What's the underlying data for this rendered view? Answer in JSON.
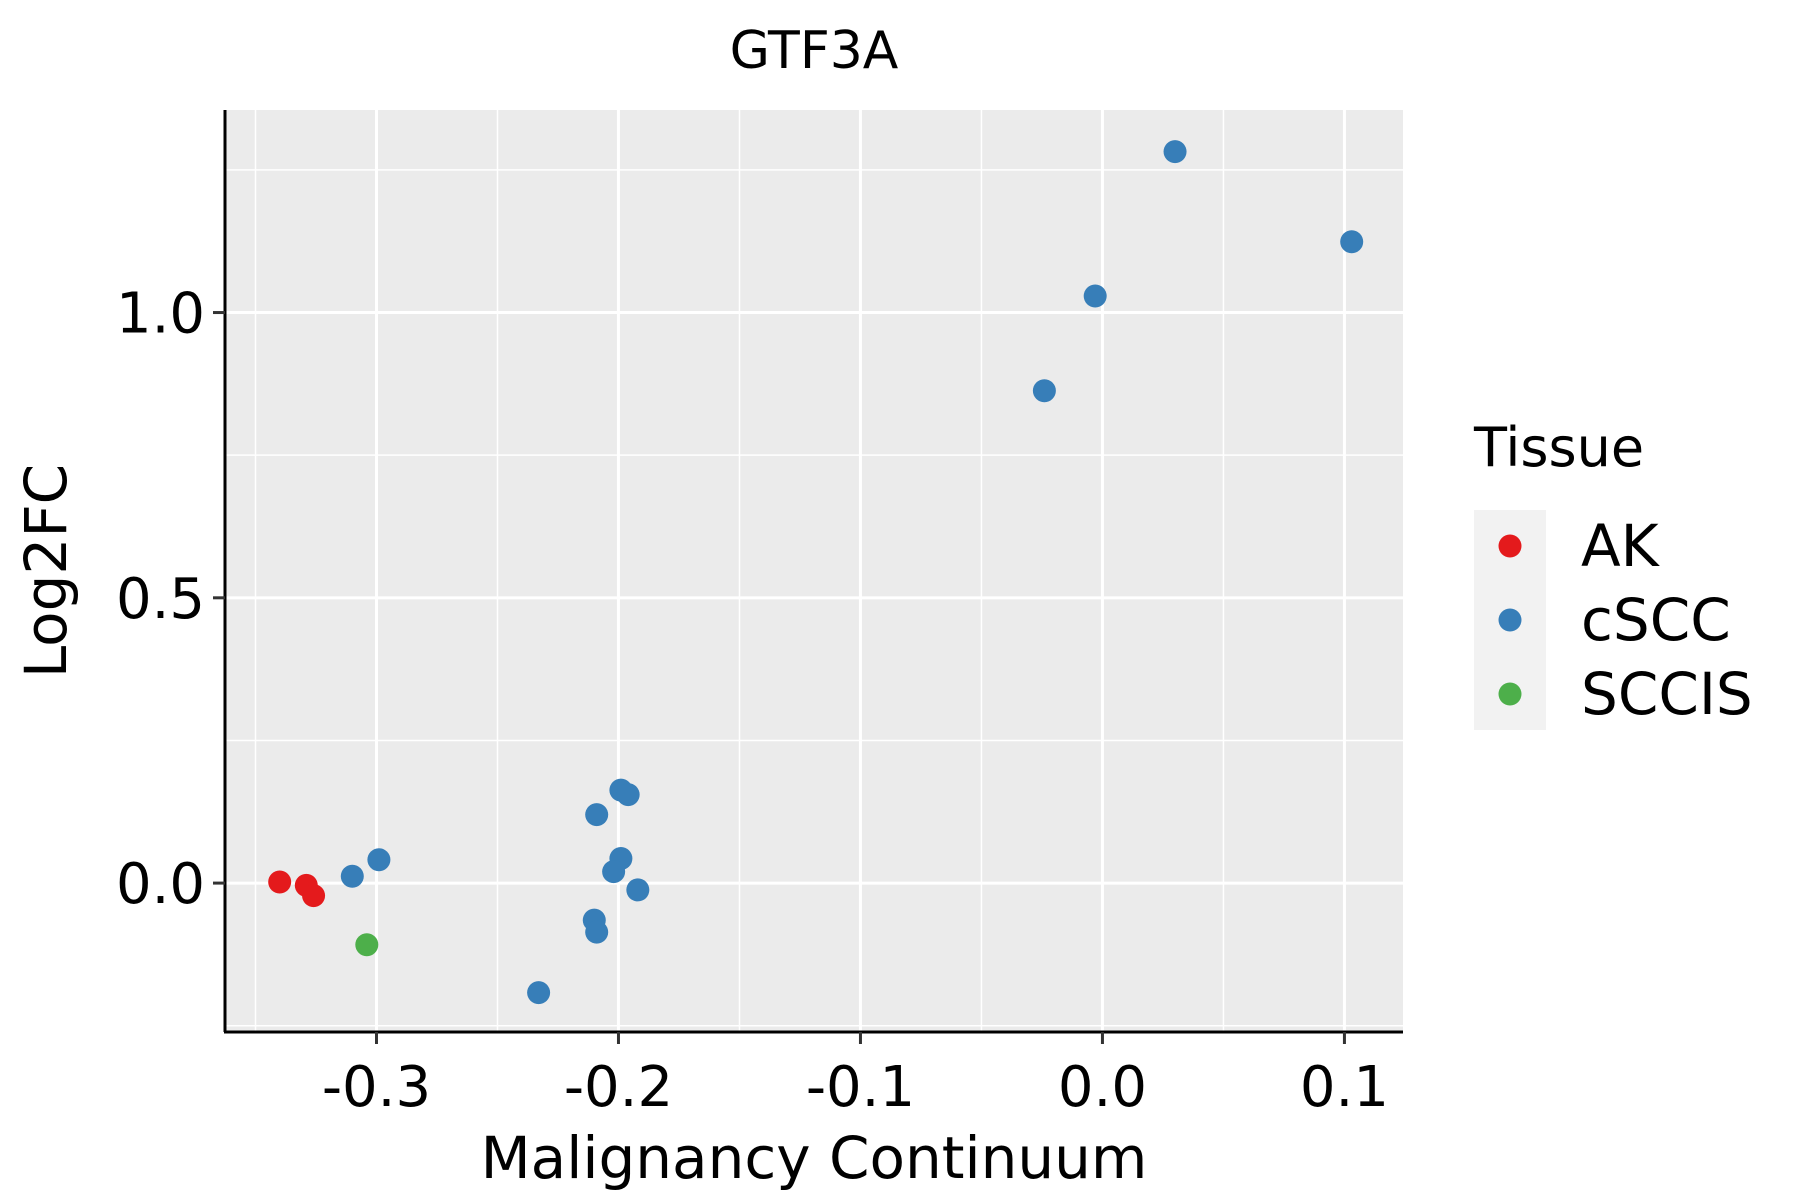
{
  "chart_data": {
    "type": "scatter",
    "title": "GTF3A",
    "xlabel": "Malignancy Continuum",
    "ylabel": "Log2FC",
    "xlim": [
      -0.3626,
      0.1242
    ],
    "ylim": [
      -0.261,
      1.355
    ],
    "xticks": [
      -0.3,
      -0.2,
      -0.1,
      0.0,
      0.1
    ],
    "xtick_labels": [
      "-0.3",
      "-0.2",
      "-0.1",
      "0.0",
      "0.1"
    ],
    "yticks": [
      0.0,
      0.5,
      1.0
    ],
    "ytick_labels": [
      "0.0",
      "0.5",
      "1.0"
    ],
    "grid": true,
    "legend": {
      "title": "Tissue",
      "placement": "right"
    },
    "series": [
      {
        "name": "AK",
        "color": "#E41A1C",
        "points": [
          [
            -0.34,
            0.002
          ],
          [
            -0.329,
            -0.004
          ],
          [
            -0.326,
            -0.022
          ]
        ]
      },
      {
        "name": "cSCC",
        "color": "#377EB8",
        "points": [
          [
            -0.31,
            0.012
          ],
          [
            -0.299,
            0.041
          ],
          [
            -0.233,
            -0.192
          ],
          [
            -0.209,
            0.12
          ],
          [
            -0.199,
            0.163
          ],
          [
            -0.196,
            0.155
          ],
          [
            -0.199,
            0.043
          ],
          [
            -0.202,
            0.02
          ],
          [
            -0.192,
            -0.012
          ],
          [
            -0.21,
            -0.065
          ],
          [
            -0.209,
            -0.086
          ],
          [
            -0.024,
            0.863
          ],
          [
            -0.003,
            1.029
          ],
          [
            0.03,
            1.282
          ],
          [
            0.103,
            1.124
          ]
        ]
      },
      {
        "name": "SCCIS",
        "color": "#4DAF4A",
        "points": [
          [
            -0.304,
            -0.108
          ]
        ]
      }
    ]
  }
}
